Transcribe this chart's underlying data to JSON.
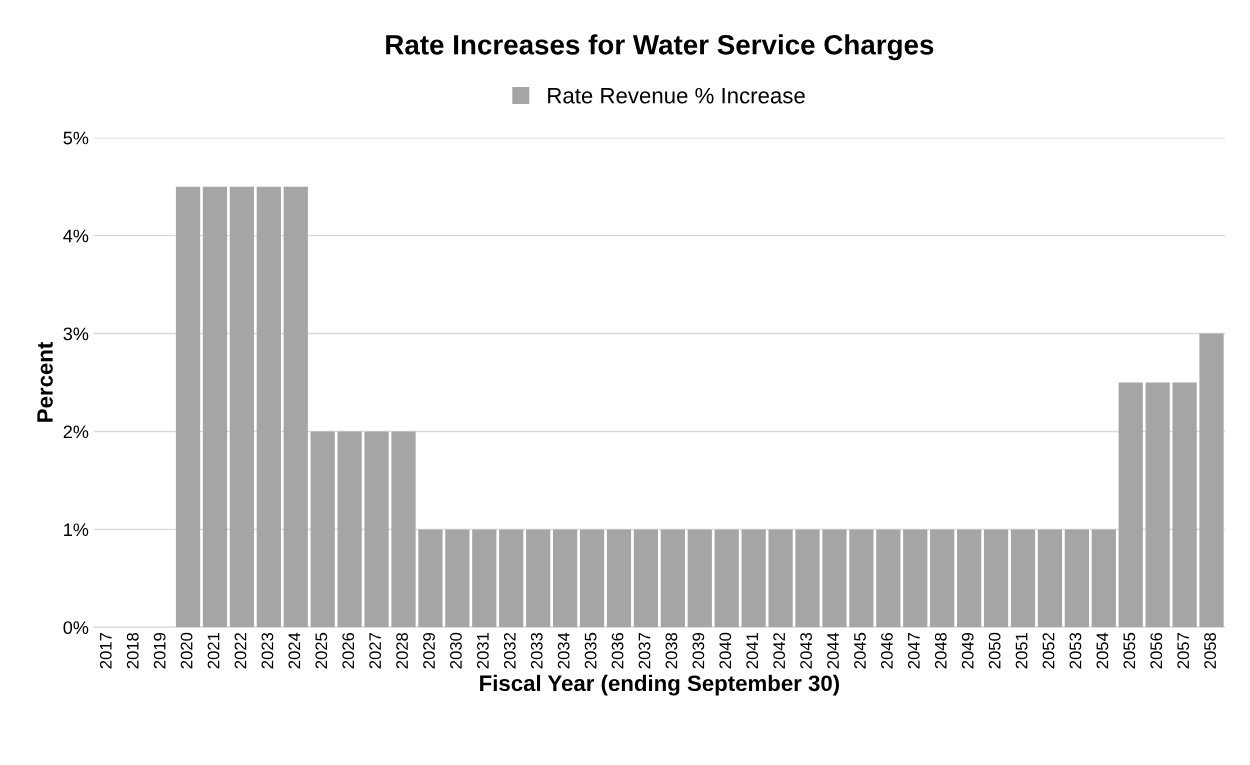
{
  "chart_data": {
    "type": "bar",
    "title": "Rate Increases for Water Service Charges",
    "xlabel": "Fiscal Year (ending September 30)",
    "ylabel": "Percent",
    "categories": [
      "2017",
      "2018",
      "2019",
      "2020",
      "2021",
      "2022",
      "2023",
      "2024",
      "2025",
      "2026",
      "2027",
      "2028",
      "2029",
      "2030",
      "2031",
      "2032",
      "2033",
      "2034",
      "2035",
      "2036",
      "2037",
      "2038",
      "2039",
      "2040",
      "2041",
      "2042",
      "2043",
      "2044",
      "2045",
      "2046",
      "2047",
      "2048",
      "2049",
      "2050",
      "2051",
      "2052",
      "2053",
      "2054",
      "2055",
      "2056",
      "2057",
      "2058"
    ],
    "series": [
      {
        "name": "Rate Revenue % Increase",
        "color": "#a5a5a5",
        "values": [
          null,
          null,
          null,
          4.5,
          4.5,
          4.5,
          4.5,
          4.5,
          2,
          2,
          2,
          2,
          1,
          1,
          1,
          1,
          1,
          1,
          1,
          1,
          1,
          1,
          1,
          1,
          1,
          1,
          1,
          1,
          1,
          1,
          1,
          1,
          1,
          1,
          1,
          1,
          1,
          1,
          2.5,
          2.5,
          2.5,
          3
        ]
      }
    ],
    "ylim": [
      0,
      5
    ],
    "yticks": [
      {
        "value": 0,
        "label": "0%"
      },
      {
        "value": 1,
        "label": "1%"
      },
      {
        "value": 2,
        "label": "2%"
      },
      {
        "value": 3,
        "label": "3%"
      },
      {
        "value": 4,
        "label": "4%"
      },
      {
        "value": 5,
        "label": "5%"
      }
    ],
    "grid": "y",
    "legend": "top"
  }
}
